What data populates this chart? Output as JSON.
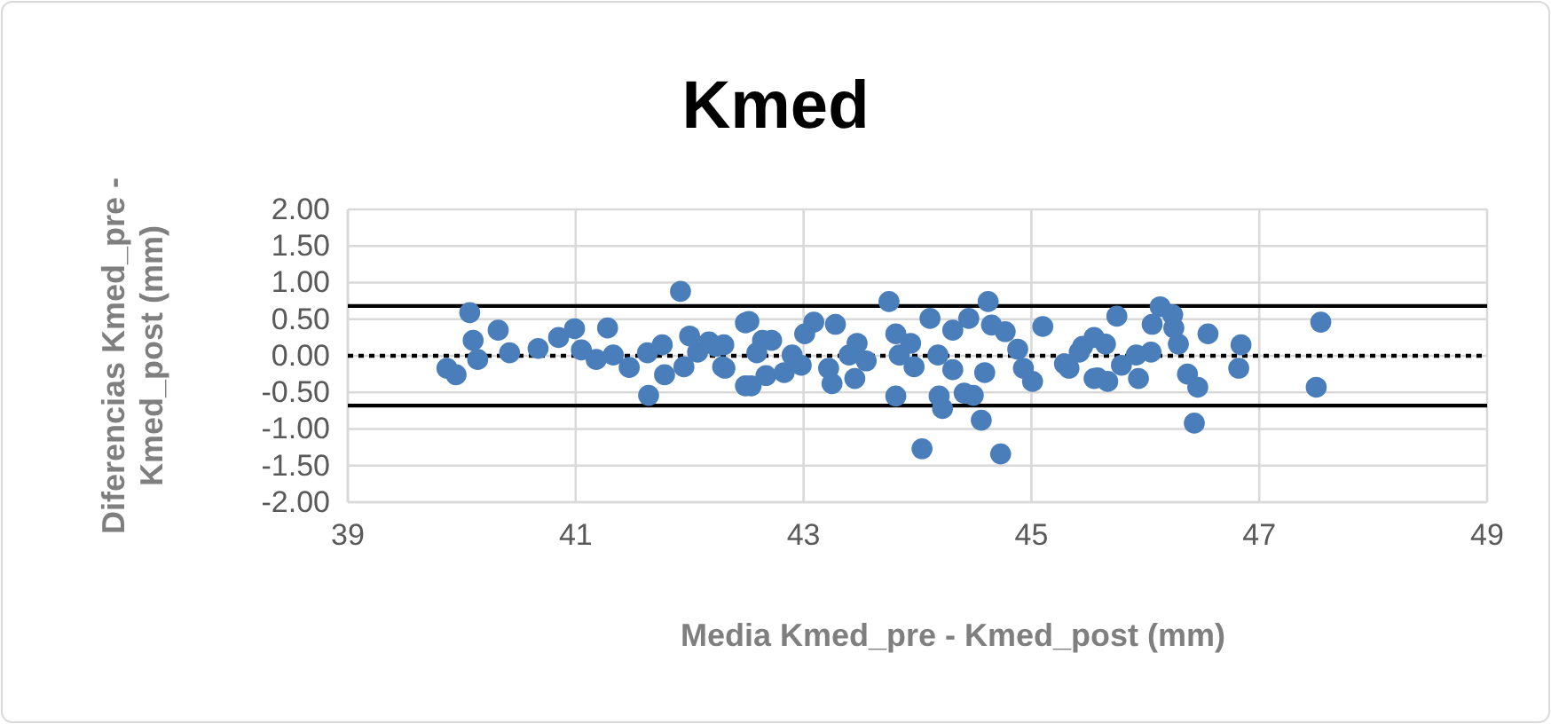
{
  "chart_data": {
    "type": "scatter",
    "title": "Kmed",
    "xlabel": "Media Kmed_pre - Kmed_post (mm)",
    "ylabel": "Diferencias Kmed_pre - Kmed_post (mm)",
    "xlim": [
      39,
      49
    ],
    "xticks": [
      39,
      41,
      43,
      45,
      47,
      49
    ],
    "ylim": [
      -2,
      2
    ],
    "yticks": [
      {
        "value": -2,
        "label": "-2.00"
      },
      {
        "value": -1.5,
        "label": "-1.50"
      },
      {
        "value": -1,
        "label": "-1.00"
      },
      {
        "value": -0.5,
        "label": "-0.50"
      },
      {
        "value": 0,
        "label": "0.00"
      },
      {
        "value": 0.5,
        "label": "0.50"
      },
      {
        "value": 1,
        "label": "1.00"
      },
      {
        "value": 1.5,
        "label": "1.50"
      },
      {
        "value": 2,
        "label": "2.00"
      }
    ],
    "grid": true,
    "marker": "circle",
    "ref_lines": [
      {
        "axis": "y",
        "value": 0.68,
        "color": "#000000",
        "line_style": "solid"
      },
      {
        "axis": "y",
        "value": 0,
        "color": "#000000",
        "line_style": "dotted"
      },
      {
        "axis": "y",
        "value": -0.68,
        "color": "#000000",
        "line_style": "solid"
      }
    ],
    "series": [
      {
        "color": "#4a7ebb",
        "x": [
          39.87,
          39.95,
          40.07,
          40.1,
          40.14,
          40.32,
          40.42,
          40.67,
          40.85,
          40.99,
          41.05,
          41.18,
          41.28,
          41.33,
          41.47,
          41.63,
          41.64,
          41.76,
          41.78,
          41.92,
          42.0,
          41.95,
          42.07,
          42.17,
          42.3,
          42.29,
          42.49,
          42.49,
          42.23,
          42.31,
          42.52,
          42.64,
          42.59,
          42.54,
          42.67,
          42.72,
          42.83,
          42.9,
          42.98,
          43.01,
          43.09,
          43.22,
          43.25,
          43.28,
          43.4,
          43.47,
          43.45,
          43.55,
          43.75,
          43.81,
          43.81,
          43.84,
          43.94,
          43.97,
          44.04,
          44.11,
          44.18,
          44.19,
          44.22,
          44.31,
          44.31,
          44.41,
          44.45,
          44.49,
          44.56,
          44.62,
          44.65,
          44.59,
          44.73,
          44.77,
          44.88,
          44.93,
          45.01,
          45.1,
          45.29,
          45.45,
          45.55,
          45.33,
          45.42,
          45.55,
          45.65,
          45.75,
          45.58,
          45.67,
          45.79,
          45.94,
          45.92,
          46.05,
          46.06,
          46.13,
          46.24,
          46.25,
          46.29,
          46.37,
          46.46,
          46.43,
          46.55,
          46.84,
          46.82,
          47.54,
          47.5
        ],
        "values": [
          -0.17,
          -0.26,
          0.59,
          0.21,
          -0.05,
          0.35,
          0.04,
          0.1,
          0.25,
          0.37,
          0.08,
          -0.05,
          0.38,
          0.01,
          -0.16,
          0.04,
          -0.54,
          0.15,
          -0.26,
          0.88,
          0.27,
          -0.15,
          0.05,
          0.19,
          0.15,
          -0.15,
          0.45,
          -0.41,
          0.13,
          -0.17,
          0.47,
          0.21,
          0.04,
          -0.41,
          -0.27,
          0.21,
          -0.23,
          0.01,
          -0.13,
          0.3,
          0.46,
          -0.17,
          -0.38,
          0.43,
          0.01,
          0.17,
          -0.31,
          -0.07,
          0.74,
          0.3,
          -0.55,
          0.01,
          0.17,
          -0.15,
          -1.27,
          0.51,
          0.01,
          -0.55,
          -0.72,
          0.35,
          -0.19,
          -0.51,
          0.51,
          -0.54,
          -0.88,
          0.74,
          0.42,
          -0.23,
          -1.34,
          0.33,
          0.09,
          -0.17,
          -0.35,
          0.4,
          -0.11,
          0.13,
          -0.31,
          -0.17,
          0.05,
          0.25,
          0.16,
          0.54,
          -0.3,
          -0.35,
          -0.13,
          -0.31,
          0.01,
          0.05,
          0.43,
          0.67,
          0.56,
          0.38,
          0.16,
          -0.25,
          -0.43,
          -0.92,
          0.3,
          0.15,
          -0.17,
          0.46,
          -0.43
        ]
      }
    ]
  }
}
